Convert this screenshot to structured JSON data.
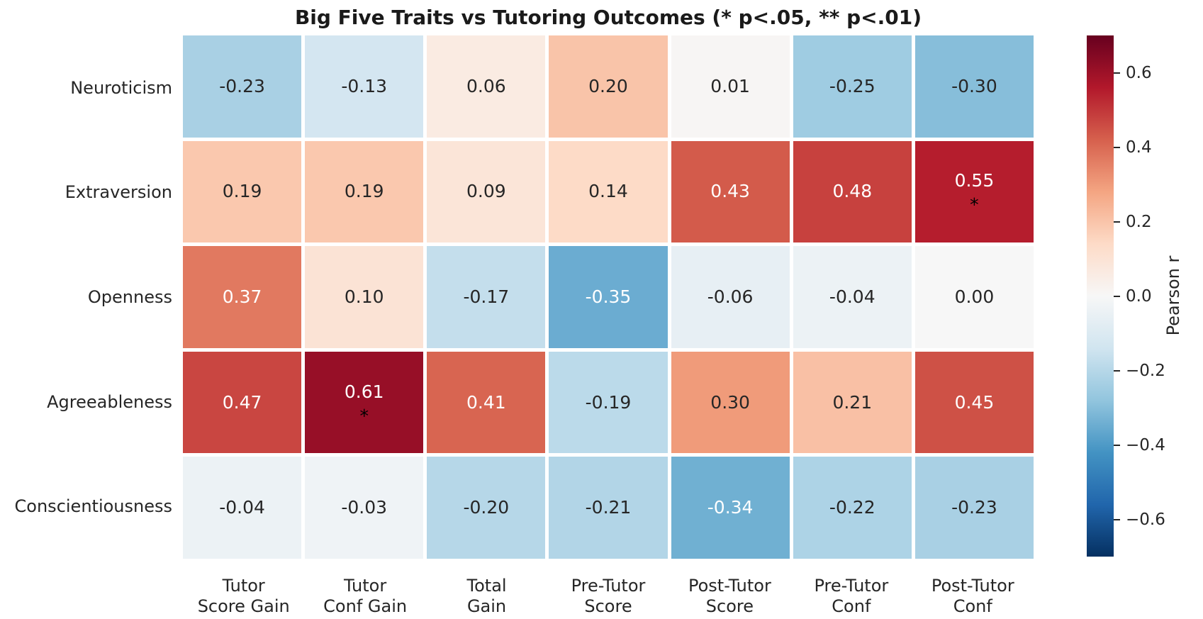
{
  "title": "Big Five Traits vs Tutoring Outcomes (* p<.05, ** p<.01)",
  "chart_data": {
    "type": "heatmap",
    "title": "Big Five Traits vs Tutoring Outcomes (* p<.05, ** p<.01)",
    "rows": [
      "Neuroticism",
      "Extraversion",
      "Openness",
      "Agreeableness",
      "Conscientiousness"
    ],
    "columns": [
      "Tutor\nScore Gain",
      "Tutor\nConf Gain",
      "Total\nGain",
      "Pre-Tutor\nScore",
      "Post-Tutor\nScore",
      "Pre-Tutor\nConf",
      "Post-Tutor\nConf"
    ],
    "values": [
      [
        -0.23,
        -0.13,
        0.06,
        0.2,
        0.01,
        -0.25,
        -0.3
      ],
      [
        0.19,
        0.19,
        0.09,
        0.14,
        0.43,
        0.48,
        0.55
      ],
      [
        0.37,
        0.1,
        -0.17,
        -0.35,
        -0.06,
        -0.04,
        0.0
      ],
      [
        0.47,
        0.61,
        0.41,
        -0.19,
        0.3,
        0.21,
        0.45
      ],
      [
        -0.04,
        -0.03,
        -0.2,
        -0.21,
        -0.34,
        -0.22,
        -0.23
      ]
    ],
    "significance": [
      [
        "",
        "",
        "",
        "",
        "",
        "",
        ""
      ],
      [
        "",
        "",
        "",
        "",
        "",
        "",
        "*"
      ],
      [
        "",
        "",
        "",
        "",
        "",
        "",
        ""
      ],
      [
        "",
        "*",
        "",
        "",
        "",
        "",
        ""
      ],
      [
        "",
        "",
        "",
        "",
        "",
        "",
        ""
      ]
    ],
    "colormap": "RdBu_r",
    "vmin": -0.7,
    "vmax": 0.7,
    "colormap_anchors": [
      "#053061",
      "#2166ac",
      "#4393c3",
      "#92c5de",
      "#d1e5f0",
      "#f7f7f7",
      "#fddbc7",
      "#f4a582",
      "#d6604d",
      "#b2182b",
      "#67001f"
    ],
    "annotation_dark_color": "#262626",
    "annotation_light_color": "#ffffff",
    "luminance_threshold": 0.408,
    "colorbar": {
      "label": "Pearson r",
      "ticks": [
        {
          "value": 0.6,
          "label": "0.6"
        },
        {
          "value": 0.4,
          "label": "0.4"
        },
        {
          "value": 0.2,
          "label": "0.2"
        },
        {
          "value": 0.0,
          "label": "0.0"
        },
        {
          "value": -0.2,
          "label": "−0.2"
        },
        {
          "value": -0.4,
          "label": "−0.4"
        },
        {
          "value": -0.6,
          "label": "−0.6"
        }
      ]
    }
  }
}
